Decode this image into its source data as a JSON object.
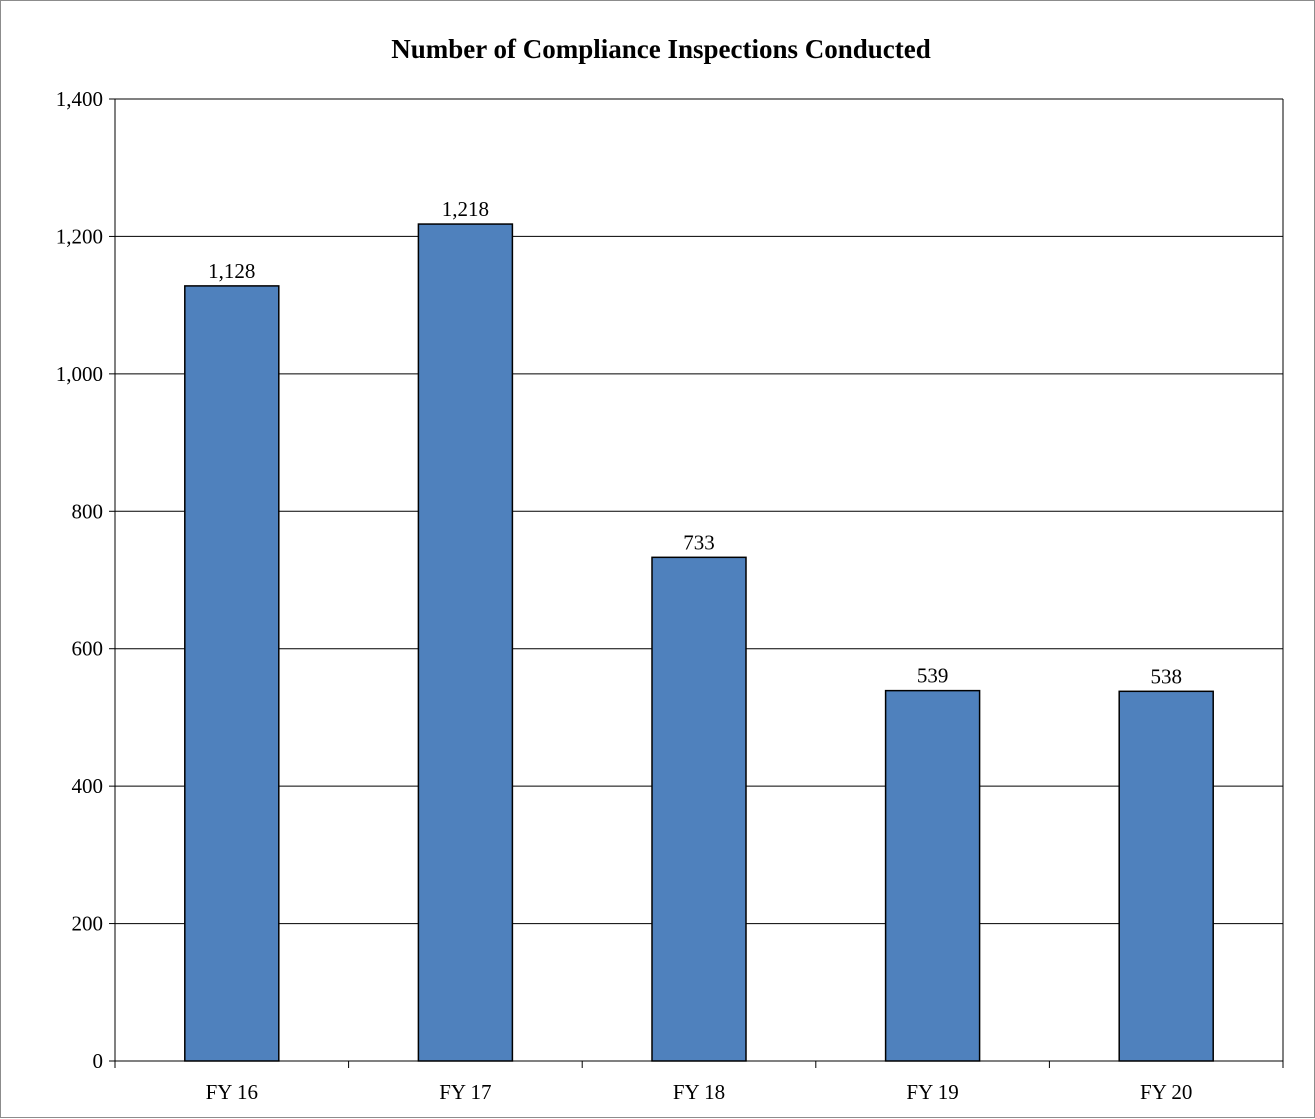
{
  "chart_data": {
    "type": "bar",
    "title": "Number of Compliance Inspections Conducted",
    "xlabel": "",
    "ylabel": "",
    "categories": [
      "FY 16",
      "FY 17",
      "FY 18",
      "FY 19",
      "FY 20"
    ],
    "values": [
      1128,
      1218,
      733,
      539,
      538
    ],
    "data_labels": [
      "1,128",
      "1,218",
      "733",
      "539",
      "538"
    ],
    "ylim": [
      0,
      1400
    ],
    "yticks": [
      0,
      200,
      400,
      600,
      800,
      1000,
      1200,
      1400
    ],
    "ytick_labels": [
      "0",
      "200",
      "400",
      "600",
      "800",
      "1,000",
      "1,200",
      "1,400"
    ],
    "grid": true,
    "legend": "none",
    "colors": {
      "bar_fill": "#4f81bd",
      "bar_stroke": "#000000",
      "gridline": "#000000",
      "frame": "#8c8c8c"
    }
  }
}
